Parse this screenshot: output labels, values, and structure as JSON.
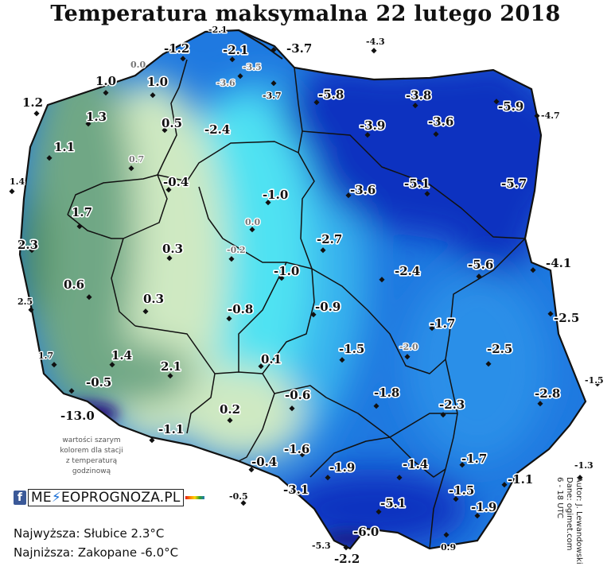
{
  "title": "Temperatura maksymalna 22 lutego 2018",
  "note": {
    "line1": "wartości szarym",
    "line2": "kolorem dla stacji",
    "line3": "z temperaturą",
    "line4": "godzinową"
  },
  "logo": {
    "prefix": "ME",
    "suffix": "EOPROGNOZA.PL"
  },
  "stats": {
    "max": "Najwyższa: Słubice 2.3°C",
    "min": "Najniższa: Zakopane -6.0°C"
  },
  "credit": {
    "author": "Autor: J. Lewandowski",
    "source": "Dane: ogimet.com",
    "hours": "6 - 18 UTC"
  },
  "colors": {
    "dark_green": "#4e8a58",
    "green": "#6fa785",
    "pale_green": "#cfe9c2",
    "cyan": "#4fe2f2",
    "light_blue": "#39b4ee",
    "blue": "#1f79e0",
    "dark_blue": "#0d33c0",
    "extreme": "#2a0e7a"
  },
  "stations": {
    "s01": "-2.1",
    "s02": "-1.2",
    "s03": "-2.1",
    "s04": "-3.5",
    "s05": "-3.7",
    "s06": "-4.3",
    "s07": "0.0",
    "s08": "1.0",
    "s09": "1.0",
    "s10": "-3.6",
    "s11": "-3.7",
    "s12": "-5.8",
    "s13": "-3.8",
    "s14": "-5.9",
    "s15": "1.2",
    "s16": "1.3",
    "s17": "0.5",
    "s18": "-2.4",
    "s19": "-3.9",
    "s20": "-3.6",
    "s21": "-4.7",
    "s22": "1.1",
    "s23": "0.7",
    "s24": "1.4",
    "s25": "-0.4",
    "s26": "-1.0",
    "s27": "-3.6",
    "s28": "-5.1",
    "s29": "-5.7",
    "s30": "1.7",
    "s31": "0.0",
    "s32": "2.3",
    "s33": "0.3",
    "s34": "-0.2",
    "s35": "-2.7",
    "s36": "-5.6",
    "s37": "-4.1",
    "s38": "-1.0",
    "s39": "-2.4",
    "s40": "0.6",
    "s41": "2.5",
    "s42": "0.3",
    "s43": "-0.8",
    "s44": "-0.9",
    "s45": "-2.5",
    "s46": "-1.7",
    "s47": "1.7",
    "s48": "1.4",
    "s49": "-1.5",
    "s50": "-2.0",
    "s51": "-2.5",
    "s52": "2.1",
    "s53": "0.1",
    "s54": "-1.5",
    "s55": "-0.5",
    "s56": "-0.6",
    "s57": "-1.8",
    "s58": "-2.8",
    "s59": "-13.0",
    "s60": "-2.3",
    "s61": "0.2",
    "s62": "-1.1",
    "s63": "-1.6",
    "s64": "-1.7",
    "s65": "-0.4",
    "s66": "-1.9",
    "s67": "-1.4",
    "s68": "-1.3",
    "s69": "-1.5",
    "s70": "-1.1",
    "s71": "-3.1",
    "s72": "-5.1",
    "s73": "-0.5",
    "s74": "-1.9",
    "s75": "-6.0",
    "s76": "-5.3",
    "s77": "0.9",
    "s78": "-2.2"
  }
}
